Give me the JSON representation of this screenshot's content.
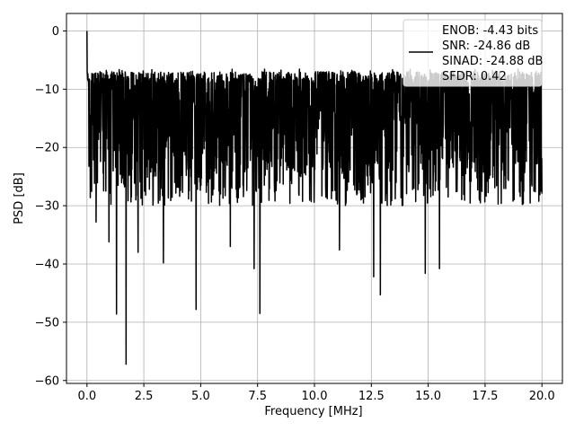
{
  "chart_data": {
    "type": "line",
    "title": "",
    "xlabel": "Frequency [MHz]",
    "ylabel": "PSD [dB]",
    "xlim": [
      -0.9,
      20.9
    ],
    "ylim": [
      -60.5,
      3
    ],
    "grid": true,
    "xticks": [
      0.0,
      2.5,
      5.0,
      7.5,
      10.0,
      12.5,
      15.0,
      17.5,
      20.0
    ],
    "xtick_labels": [
      "0.0",
      "2.5",
      "5.0",
      "7.5",
      "10.0",
      "12.5",
      "15.0",
      "17.5",
      "20.0"
    ],
    "yticks": [
      0,
      -10,
      -20,
      -30,
      -40,
      -50,
      -60
    ],
    "ytick_labels": [
      "0",
      "−10",
      "−20",
      "−30",
      "−40",
      "−50",
      "−60"
    ],
    "legend": {
      "placement": "top-right",
      "entries": [
        "ENOB: -4.43 bits",
        "SNR: -24.86 dB",
        "SINAD: -24.88 dB",
        "SFDR: 0.42"
      ]
    },
    "series": [
      {
        "color": "#000000",
        "x_range": [
          0,
          20
        ],
        "num_points": 2048,
        "baseline_db": -14.5,
        "typical_range_db": [
          -30,
          -5
        ],
        "peaks": [
          {
            "x": 0.0,
            "y": 0.0
          }
        ],
        "dips": [
          {
            "x": 0.0,
            "y": -33.5
          },
          {
            "x": 0.4,
            "y": -32.8
          },
          {
            "x": 0.97,
            "y": -36.2
          },
          {
            "x": 1.3,
            "y": -48.6
          },
          {
            "x": 1.72,
            "y": -57.2
          },
          {
            "x": 2.25,
            "y": -38.0
          },
          {
            "x": 3.36,
            "y": -39.8
          },
          {
            "x": 4.8,
            "y": -47.8
          },
          {
            "x": 6.3,
            "y": -37.0
          },
          {
            "x": 7.35,
            "y": -40.8
          },
          {
            "x": 7.6,
            "y": -48.5
          },
          {
            "x": 11.1,
            "y": -37.6
          },
          {
            "x": 12.6,
            "y": -42.2
          },
          {
            "x": 12.9,
            "y": -45.3
          },
          {
            "x": 14.87,
            "y": -41.6
          },
          {
            "x": 15.5,
            "y": -40.8
          }
        ]
      }
    ]
  }
}
